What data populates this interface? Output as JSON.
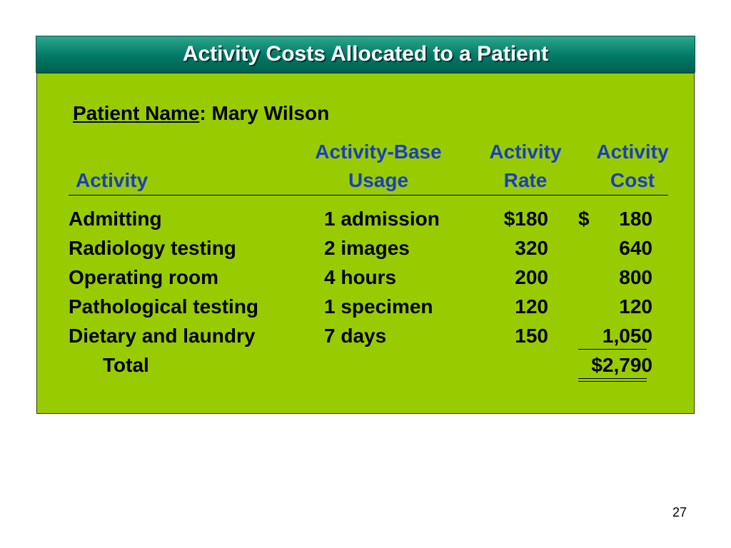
{
  "slide": {
    "title": "Activity Costs Allocated to a Patient",
    "page_number": "27"
  },
  "patient": {
    "label": "Patient Name",
    "separator": ":",
    "name": "Mary Wilson"
  },
  "headers": {
    "activity": "Activity",
    "usage_line1": "Activity-Base",
    "usage_line2": "Usage",
    "rate_line1": "Activity",
    "rate_line2": "Rate",
    "cost_line1": "Activity",
    "cost_line2": "Cost"
  },
  "rows": [
    {
      "activity": "Admitting",
      "usage": "1 admission",
      "rate": "$180",
      "cost_symbol": "$",
      "cost": "180"
    },
    {
      "activity": "Radiology testing",
      "usage": "2 images",
      "rate": "320",
      "cost_symbol": "",
      "cost": "640"
    },
    {
      "activity": "Operating room",
      "usage": "4 hours",
      "rate": "200",
      "cost_symbol": "",
      "cost": "800"
    },
    {
      "activity": "Pathological testing",
      "usage": "1 specimen",
      "rate": "120",
      "cost_symbol": "",
      "cost": "120"
    },
    {
      "activity": "Dietary and laundry",
      "usage": "7 days",
      "rate": "150",
      "cost_symbol": "",
      "cost": "1,050"
    }
  ],
  "total": {
    "label": "Total",
    "value": "$2,790"
  }
}
